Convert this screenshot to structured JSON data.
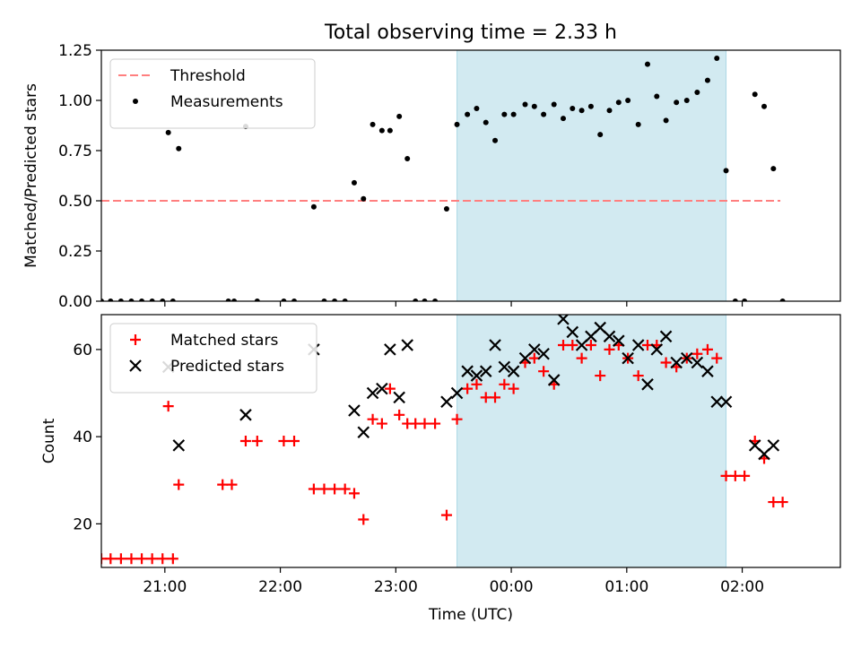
{
  "chart_data": {
    "title": "Total observing time = 2.33 h",
    "xlabel": "Time (UTC)",
    "x_unit": "hours UTC relative to 00:00 (negative = previous evening)",
    "xlim": [
      -3.55,
      2.85
    ],
    "xticks": [
      {
        "value": -3,
        "label": "21:00"
      },
      {
        "value": -2,
        "label": "22:00"
      },
      {
        "value": -1,
        "label": "23:00"
      },
      {
        "value": 0,
        "label": "00:00"
      },
      {
        "value": 1,
        "label": "01:00"
      },
      {
        "value": 2,
        "label": "02:00"
      }
    ],
    "observing_window": {
      "start": -0.47,
      "end": 1.86,
      "color": "#add8e6"
    },
    "panels": [
      {
        "type": "scatter",
        "ylabel": "Matched/Predicted stars",
        "ylim": [
          0,
          1.25
        ],
        "yticks": [
          "0.00",
          "0.25",
          "0.50",
          "0.75",
          "1.00",
          "1.25"
        ],
        "ytick_values": [
          0,
          0.25,
          0.5,
          0.75,
          1.0,
          1.25
        ],
        "legend": {
          "placement": "upper-left",
          "entries": [
            {
              "label": "Threshold",
              "style": "dashed-line",
              "color": "#ff7f7f"
            },
            {
              "label": "Measurements",
              "style": "dot",
              "color": "#000000"
            }
          ]
        },
        "threshold": {
          "name": "Threshold",
          "value": 0.5,
          "x_range": [
            -3.55,
            2.33
          ],
          "color": "#ff7f7f"
        },
        "series": [
          {
            "name": "Measurements",
            "marker": "dot",
            "color": "#000000",
            "points": [
              [
                -3.55,
                0
              ],
              [
                -3.47,
                0
              ],
              [
                -3.38,
                0
              ],
              [
                -3.29,
                0
              ],
              [
                -3.2,
                0
              ],
              [
                -3.11,
                0
              ],
              [
                -3.02,
                0
              ],
              [
                -2.93,
                0
              ],
              [
                -2.97,
                0.84
              ],
              [
                -2.88,
                0.76
              ],
              [
                -2.45,
                0
              ],
              [
                -2.4,
                0
              ],
              [
                -2.3,
                0.87
              ],
              [
                -2.2,
                0
              ],
              [
                -1.97,
                0
              ],
              [
                -1.88,
                0
              ],
              [
                -1.71,
                0.47
              ],
              [
                -1.62,
                0
              ],
              [
                -1.53,
                0
              ],
              [
                -1.44,
                0
              ],
              [
                -1.36,
                0.59
              ],
              [
                -1.28,
                0.51
              ],
              [
                -1.2,
                0.88
              ],
              [
                -1.12,
                0.85
              ],
              [
                -1.05,
                0.85
              ],
              [
                -0.97,
                0.92
              ],
              [
                -0.9,
                0.71
              ],
              [
                -0.83,
                0
              ],
              [
                -0.75,
                0
              ],
              [
                -0.66,
                0
              ],
              [
                -0.56,
                0.46
              ],
              [
                -0.47,
                0.88
              ],
              [
                -0.38,
                0.93
              ],
              [
                -0.3,
                0.96
              ],
              [
                -0.22,
                0.89
              ],
              [
                -0.14,
                0.8
              ],
              [
                -0.06,
                0.93
              ],
              [
                0.02,
                0.93
              ],
              [
                0.12,
                0.98
              ],
              [
                0.2,
                0.97
              ],
              [
                0.28,
                0.93
              ],
              [
                0.37,
                0.98
              ],
              [
                0.45,
                0.91
              ],
              [
                0.53,
                0.96
              ],
              [
                0.61,
                0.95
              ],
              [
                0.69,
                0.97
              ],
              [
                0.77,
                0.83
              ],
              [
                0.85,
                0.95
              ],
              [
                0.93,
                0.99
              ],
              [
                1.01,
                1.0
              ],
              [
                1.1,
                0.88
              ],
              [
                1.18,
                1.18
              ],
              [
                1.26,
                1.02
              ],
              [
                1.34,
                0.9
              ],
              [
                1.43,
                0.99
              ],
              [
                1.52,
                1.0
              ],
              [
                1.61,
                1.04
              ],
              [
                1.7,
                1.1
              ],
              [
                1.78,
                1.21
              ],
              [
                1.86,
                0.65
              ],
              [
                1.94,
                0
              ],
              [
                2.02,
                0
              ],
              [
                2.11,
                1.03
              ],
              [
                2.19,
                0.97
              ],
              [
                2.27,
                0.66
              ],
              [
                2.35,
                0
              ]
            ]
          }
        ]
      },
      {
        "type": "scatter",
        "ylabel": "Count",
        "ylim": [
          10,
          68
        ],
        "yticks": [
          "20",
          "40",
          "60"
        ],
        "ytick_values": [
          20,
          40,
          60
        ],
        "legend": {
          "placement": "upper-left",
          "entries": [
            {
              "label": "Matched stars",
              "style": "plus",
              "color": "#ff0000"
            },
            {
              "label": "Predicted stars",
              "style": "x",
              "color": "#000000"
            }
          ]
        },
        "series": [
          {
            "name": "Matched stars",
            "marker": "plus",
            "color": "#ff0000",
            "points": [
              [
                -3.55,
                12
              ],
              [
                -3.47,
                12
              ],
              [
                -3.38,
                12
              ],
              [
                -3.29,
                12
              ],
              [
                -3.2,
                12
              ],
              [
                -3.11,
                12
              ],
              [
                -3.02,
                12
              ],
              [
                -2.93,
                12
              ],
              [
                -2.97,
                47
              ],
              [
                -2.88,
                29
              ],
              [
                -2.5,
                29
              ],
              [
                -2.42,
                29
              ],
              [
                -2.3,
                39
              ],
              [
                -2.2,
                39
              ],
              [
                -1.97,
                39
              ],
              [
                -1.88,
                39
              ],
              [
                -1.71,
                28
              ],
              [
                -1.62,
                28
              ],
              [
                -1.53,
                28
              ],
              [
                -1.44,
                28
              ],
              [
                -1.36,
                27
              ],
              [
                -1.28,
                21
              ],
              [
                -1.2,
                44
              ],
              [
                -1.12,
                43
              ],
              [
                -1.05,
                51
              ],
              [
                -0.97,
                45
              ],
              [
                -0.9,
                43
              ],
              [
                -0.83,
                43
              ],
              [
                -0.75,
                43
              ],
              [
                -0.66,
                43
              ],
              [
                -0.56,
                22
              ],
              [
                -0.47,
                44
              ],
              [
                -0.38,
                51
              ],
              [
                -0.3,
                52
              ],
              [
                -0.22,
                49
              ],
              [
                -0.14,
                49
              ],
              [
                -0.06,
                52
              ],
              [
                0.02,
                51
              ],
              [
                0.12,
                57
              ],
              [
                0.2,
                58
              ],
              [
                0.28,
                55
              ],
              [
                0.37,
                52
              ],
              [
                0.45,
                61
              ],
              [
                0.53,
                61
              ],
              [
                0.61,
                58
              ],
              [
                0.69,
                61
              ],
              [
                0.77,
                54
              ],
              [
                0.85,
                60
              ],
              [
                0.93,
                61
              ],
              [
                1.01,
                58
              ],
              [
                1.1,
                54
              ],
              [
                1.18,
                61
              ],
              [
                1.26,
                61
              ],
              [
                1.34,
                57
              ],
              [
                1.43,
                56
              ],
              [
                1.52,
                58
              ],
              [
                1.61,
                59
              ],
              [
                1.7,
                60
              ],
              [
                1.78,
                58
              ],
              [
                1.86,
                31
              ],
              [
                1.94,
                31
              ],
              [
                2.02,
                31
              ],
              [
                2.11,
                39
              ],
              [
                2.19,
                35
              ],
              [
                2.27,
                25
              ],
              [
                2.35,
                25
              ]
            ]
          },
          {
            "name": "Predicted stars",
            "marker": "x",
            "color": "#000000",
            "points": [
              [
                -2.97,
                56
              ],
              [
                -2.88,
                38
              ],
              [
                -2.3,
                45
              ],
              [
                -1.71,
                60
              ],
              [
                -1.36,
                46
              ],
              [
                -1.28,
                41
              ],
              [
                -1.2,
                50
              ],
              [
                -1.12,
                51
              ],
              [
                -1.05,
                60
              ],
              [
                -0.97,
                49
              ],
              [
                -0.9,
                61
              ],
              [
                -0.56,
                48
              ],
              [
                -0.47,
                50
              ],
              [
                -0.38,
                55
              ],
              [
                -0.3,
                54
              ],
              [
                -0.22,
                55
              ],
              [
                -0.14,
                61
              ],
              [
                -0.06,
                56
              ],
              [
                0.02,
                55
              ],
              [
                0.12,
                58
              ],
              [
                0.2,
                60
              ],
              [
                0.28,
                59
              ],
              [
                0.37,
                53
              ],
              [
                0.45,
                67
              ],
              [
                0.53,
                64
              ],
              [
                0.61,
                61
              ],
              [
                0.69,
                63
              ],
              [
                0.77,
                65
              ],
              [
                0.85,
                63
              ],
              [
                0.93,
                62
              ],
              [
                1.01,
                58
              ],
              [
                1.1,
                61
              ],
              [
                1.18,
                52
              ],
              [
                1.26,
                60
              ],
              [
                1.34,
                63
              ],
              [
                1.43,
                57
              ],
              [
                1.52,
                58
              ],
              [
                1.61,
                57
              ],
              [
                1.7,
                55
              ],
              [
                1.78,
                48
              ],
              [
                1.86,
                48
              ],
              [
                2.11,
                38
              ],
              [
                2.19,
                36
              ],
              [
                2.27,
                38
              ]
            ]
          }
        ]
      }
    ]
  }
}
